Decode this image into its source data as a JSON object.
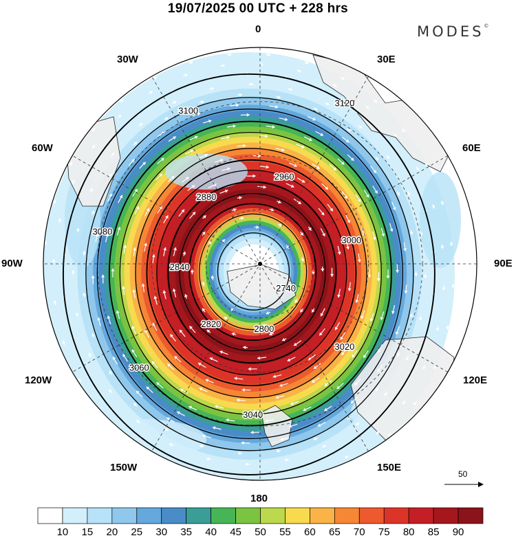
{
  "title": "19/07/2025  00 UTC  + 228 hrs",
  "brand": {
    "name": "MODES",
    "mark": "©"
  },
  "longitude_labels": {
    "n": "0",
    "s": "180",
    "e90": "90E",
    "w90": "90W",
    "e30": "30E",
    "w30": "30W",
    "e60": "60E",
    "w60": "60W",
    "e120": "120E",
    "w120": "120W",
    "e150": "150E",
    "w150": "150W"
  },
  "contours": {
    "values": [
      2740,
      2800,
      2820,
      2840,
      2880,
      2960,
      3000,
      3020,
      3040,
      3060,
      3080,
      3100,
      3120
    ],
    "labels": [
      "2740",
      "2800",
      "2820",
      "2840",
      "2880",
      "2960",
      "3000",
      "3020",
      "3040",
      "3060",
      "3080",
      "3100",
      "3120"
    ]
  },
  "wind_speed_colorbar": {
    "labels": [
      "10",
      "15",
      "20",
      "25",
      "30",
      "35",
      "40",
      "45",
      "50",
      "55",
      "60",
      "65",
      "70",
      "75",
      "80",
      "85",
      "90"
    ],
    "colors": [
      "#ffffff",
      "#d2effb",
      "#b7e2f8",
      "#8fc8ec",
      "#65a8dc",
      "#4a8cc8",
      "#3a9e96",
      "#47b556",
      "#7ac442",
      "#bcd84c",
      "#f8da4e",
      "#f9b347",
      "#f68735",
      "#ec5a2e",
      "#dd3428",
      "#c41f25",
      "#a5171d",
      "#8b131a"
    ]
  },
  "reference_vector": {
    "label": "50"
  },
  "colors": {
    "land": "#eeeeee",
    "contour": "#000000",
    "grid": "#333333",
    "arrow": "#ffffff"
  }
}
